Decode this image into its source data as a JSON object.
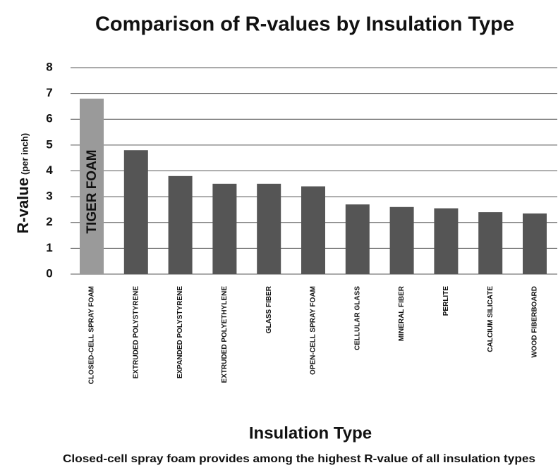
{
  "chart_data": {
    "type": "bar",
    "title": "Comparison of R-values by Insulation Type",
    "y_label": "R-value",
    "y_label_note": "(per inch)",
    "x_label": "Insulation Type",
    "caption": "Closed-cell spray foam provides among the highest R-value of all insulation types",
    "annotation": "TIGER FOAM",
    "categories": [
      "CLOSED-CELL SPRAY FOAM",
      "EXTRUDED POLYSTYRENE",
      "EXPANDED POLYSTYRENE",
      "EXTRUDED POLYETHYLENE",
      "GLASS FIBER",
      "OPEN-CELL SPRAY FOAM",
      "CELLULAR GLASS",
      "MINERAL FIBER",
      "PERLITE",
      "CALCIUM SILICATE",
      "WOOD FIBERBOARD"
    ],
    "values": [
      6.8,
      4.8,
      3.8,
      3.5,
      3.5,
      3.4,
      2.7,
      2.6,
      2.55,
      2.4,
      2.35
    ],
    "colors": [
      "#9a9a9a",
      "#555555",
      "#555555",
      "#555555",
      "#555555",
      "#555555",
      "#555555",
      "#555555",
      "#555555",
      "#555555",
      "#555555"
    ],
    "ylim": [
      0,
      8
    ],
    "yticks": [
      0,
      1,
      2,
      3,
      4,
      5,
      6,
      7,
      8
    ],
    "grid": true
  }
}
